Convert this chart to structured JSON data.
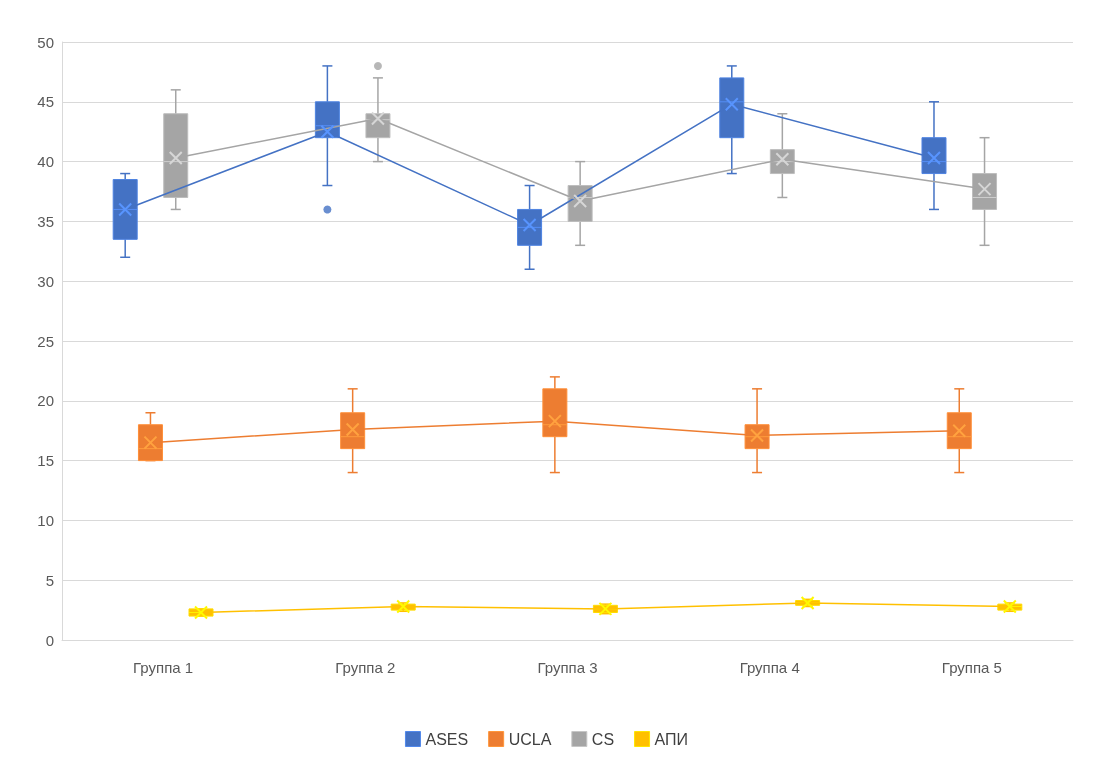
{
  "chart_data": {
    "type": "box",
    "categories": [
      "Группа 1",
      "Группа 2",
      "Группа 3",
      "Группа 4",
      "Группа 5"
    ],
    "series": [
      {
        "name": "ASES",
        "color": "#4472c4",
        "boxes": [
          {
            "low": 32,
            "q1": 33.5,
            "median": 36,
            "q3": 38.5,
            "high": 39
          },
          {
            "low": 38,
            "q1": 42,
            "median": 43,
            "q3": 45,
            "high": 48,
            "outliers": [
              36
            ]
          },
          {
            "low": 31,
            "q1": 33,
            "median": 34.5,
            "q3": 36,
            "high": 38
          },
          {
            "low": 39,
            "q1": 42,
            "median": 45,
            "q3": 47,
            "high": 48
          },
          {
            "low": 36,
            "q1": 39,
            "median": 40,
            "q3": 42,
            "high": 45
          }
        ]
      },
      {
        "name": "UCLA",
        "color": "#ed7d31",
        "boxes": [
          {
            "low": 15,
            "q1": 15,
            "median": 16,
            "q3": 18,
            "high": 19
          },
          {
            "low": 14,
            "q1": 16,
            "median": 17,
            "q3": 19,
            "high": 21
          },
          {
            "low": 14,
            "q1": 17,
            "median": 18,
            "q3": 21,
            "high": 22
          },
          {
            "low": 14,
            "q1": 16,
            "median": 17,
            "q3": 18,
            "high": 21
          },
          {
            "low": 14,
            "q1": 16,
            "median": 17,
            "q3": 19,
            "high": 21
          }
        ]
      },
      {
        "name": "CS",
        "color": "#a5a5a5",
        "boxes": [
          {
            "low": 36,
            "q1": 37,
            "median": 40,
            "q3": 44,
            "high": 46
          },
          {
            "low": 40,
            "q1": 42,
            "median": 43.5,
            "q3": 44,
            "high": 47,
            "outliers": [
              48
            ]
          },
          {
            "low": 33,
            "q1": 35,
            "median": 37,
            "q3": 38,
            "high": 40
          },
          {
            "low": 37,
            "q1": 39,
            "median": 40,
            "q3": 41,
            "high": 44
          },
          {
            "low": 33,
            "q1": 36,
            "median": 37,
            "q3": 39,
            "high": 42
          }
        ]
      },
      {
        "name": "АПИ",
        "color": "#ffc000",
        "boxes": [
          {
            "low": 2,
            "q1": 2,
            "median": 2.3,
            "q3": 2.6,
            "high": 2.6
          },
          {
            "low": 2.4,
            "q1": 2.5,
            "median": 2.8,
            "q3": 3,
            "high": 3.1
          },
          {
            "low": 2.2,
            "q1": 2.3,
            "median": 2.6,
            "q3": 2.9,
            "high": 3
          },
          {
            "low": 2.8,
            "q1": 2.9,
            "median": 3.1,
            "q3": 3.3,
            "high": 3.4
          },
          {
            "low": 2.4,
            "q1": 2.5,
            "median": 2.8,
            "q3": 3,
            "high": 3.1
          }
        ]
      },
      {
        "type": "line",
        "color": "#4472c4",
        "values": [
          36,
          42.5,
          34.7,
          44.8,
          40.3
        ]
      },
      {
        "type": "line",
        "color": "#ed7d31",
        "values": [
          16.5,
          17.6,
          18.3,
          17.1,
          17.5
        ]
      },
      {
        "type": "line",
        "color": "#a5a5a5",
        "values": [
          40.3,
          43.6,
          36.7,
          40.2,
          37.7
        ]
      },
      {
        "type": "line",
        "color": "#ffc000",
        "values": [
          2.3,
          2.8,
          2.6,
          3.1,
          2.8
        ]
      }
    ],
    "ylim": [
      0,
      50
    ],
    "yticks": [
      0,
      5,
      10,
      15,
      20,
      25,
      30,
      35,
      40,
      45,
      50
    ],
    "grid": "y",
    "legend": "bottom",
    "marker": "cross"
  }
}
